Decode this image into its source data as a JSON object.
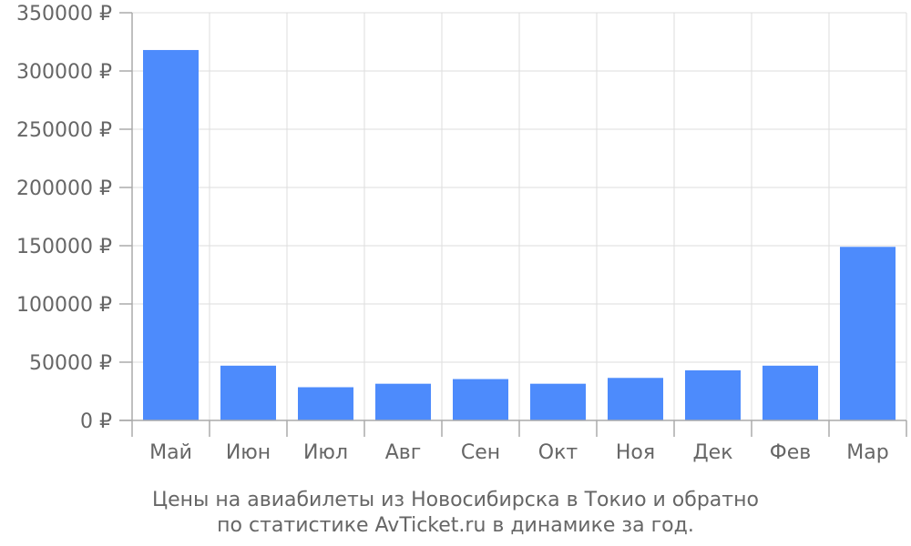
{
  "chart_data": {
    "type": "bar",
    "categories": [
      "Май",
      "Июн",
      "Июл",
      "Авг",
      "Сен",
      "Окт",
      "Ноя",
      "Дек",
      "Фев",
      "Мар"
    ],
    "values": [
      318000,
      47000,
      28500,
      31500,
      35500,
      31500,
      36500,
      43000,
      47000,
      149000
    ],
    "ylim": [
      0,
      350000
    ],
    "yticks": [
      0,
      50000,
      100000,
      150000,
      200000,
      250000,
      300000,
      350000
    ],
    "ytick_labels": [
      "0 ₽",
      "50000 ₽",
      "100000 ₽",
      "150000 ₽",
      "200000 ₽",
      "250000 ₽",
      "300000 ₽",
      "350000 ₽"
    ],
    "grid": true,
    "bar_color": "#4d8bfc",
    "caption_lines": [
      "Цены на авиабилеты из Новосибирска в Токио и обратно",
      "по статистике AvTicket.ru в динамике за год."
    ]
  }
}
